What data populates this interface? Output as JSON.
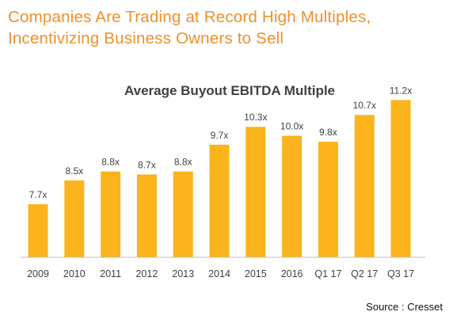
{
  "headline": {
    "line1": "Companies Are Trading at Record High Multiples,",
    "line2": "Incentivizing Business Owners to Sell"
  },
  "source": "Source : Cresset",
  "colors": {
    "headline": "#f0902a",
    "bar": "#fbb41c",
    "axis": "#bfbfbf",
    "text": "#404040"
  },
  "chart_data": {
    "type": "bar",
    "title": "Average Buyout EBITDA Multiple",
    "categories": [
      "2009",
      "2010",
      "2011",
      "2012",
      "2013",
      "2014",
      "2015",
      "2016",
      "Q1 17",
      "Q2 17",
      "Q3 17"
    ],
    "values": [
      7.7,
      8.5,
      8.8,
      8.7,
      8.8,
      9.7,
      10.3,
      10.0,
      9.8,
      10.7,
      11.2
    ],
    "data_labels": [
      "7.7x",
      "8.5x",
      "8.8x",
      "8.7x",
      "8.8x",
      "9.7x",
      "10.3x",
      "10.0x",
      "9.8x",
      "10.7x",
      "11.2x"
    ],
    "xlabel": "",
    "ylabel": "",
    "grid": false,
    "legend": "none"
  }
}
